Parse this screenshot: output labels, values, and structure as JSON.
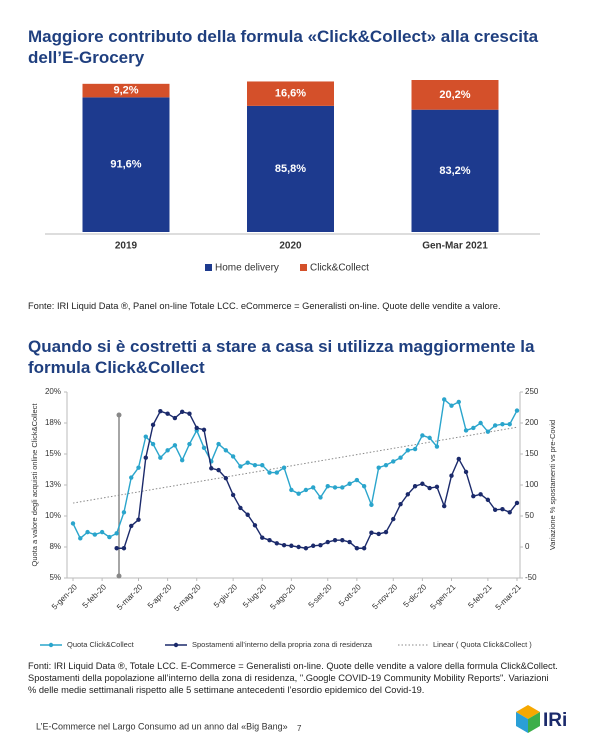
{
  "chart_data": [
    {
      "type": "bar",
      "stacked": true,
      "title": "Maggiore contributo della formula «Click&Collect» alla crescita dell’E-Grocery",
      "categories": [
        "2019",
        "2020",
        "Gen-Mar 2021"
      ],
      "series": [
        {
          "name": "Home delivery",
          "color": "#1d3a8e",
          "values": [
            91.6,
            85.8,
            83.2
          ],
          "value_labels": [
            "91,6%",
            "85,8%",
            "83,2%"
          ]
        },
        {
          "name": "Click&Collect",
          "color": "#d4502a",
          "values": [
            9.2,
            16.6,
            20.2
          ],
          "value_labels": [
            "9,2%",
            "16,6%",
            "20,2%"
          ]
        }
      ],
      "source": "Fonte: IRI Liquid Data ®, Panel on-line Totale LCC. eCommerce = Generalisti on-line. Quote delle vendite a valore."
    },
    {
      "type": "line",
      "title": "Quando si è costretti a stare a casa si utilizza maggiormente la formula Click&Collect",
      "ylabel": "Quota a valore degli acquisti online Click&Collect",
      "y2label": "Variazione % spostamenti vs pre-Covid",
      "categories": [
        "5-gen-20",
        null,
        null,
        null,
        "5-feb-20",
        null,
        null,
        null,
        null,
        "5-mar-20",
        null,
        null,
        null,
        "5-apr-20",
        null,
        null,
        null,
        "5-mag-20",
        null,
        null,
        null,
        null,
        "5-giu-20",
        null,
        null,
        null,
        "5-lug-20",
        null,
        null,
        null,
        "5-ago-20",
        null,
        null,
        null,
        null,
        "5-set-20",
        null,
        null,
        null,
        "5-ott-20",
        null,
        null,
        null,
        null,
        "5-nov-20",
        null,
        null,
        null,
        "5-dic-20",
        null,
        null,
        null,
        "5-gen-21",
        null,
        null,
        null,
        null,
        "5-feb-21",
        null,
        null,
        null,
        "5-mar-21"
      ],
      "ylim": [
        5,
        20
      ],
      "yticks": [
        {
          "value": 5,
          "label": "5%"
        },
        {
          "value": 7.5,
          "label": "8%"
        },
        {
          "value": 10,
          "label": "10%"
        },
        {
          "value": 12.5,
          "label": "13%"
        },
        {
          "value": 15,
          "label": "15%"
        },
        {
          "value": 17.5,
          "label": "18%"
        },
        {
          "value": 20,
          "label": "20%"
        }
      ],
      "y2lim": [
        -50,
        250
      ],
      "y2ticks": [
        -50,
        0,
        50,
        100,
        150,
        200,
        250
      ],
      "series": [
        {
          "name": "Quota Click&Collect",
          "color": "#2aa5cc",
          "values": [
            9.4,
            8.2,
            8.7,
            8.5,
            8.7,
            8.3,
            8.6,
            10.3,
            13.1,
            13.9,
            16.4,
            15.8,
            14.7,
            15.3,
            15.7,
            14.5,
            15.8,
            16.9,
            15.5,
            14.4,
            15.8,
            15.3,
            14.8,
            14.0,
            14.3,
            14.1,
            14.1,
            13.5,
            13.5,
            13.9,
            12.1,
            11.8,
            12.1,
            12.3,
            11.5,
            12.4,
            12.3,
            12.3,
            12.6,
            12.9,
            12.4,
            10.9,
            13.9,
            14.1,
            14.4,
            14.7,
            15.3,
            15.4,
            16.5,
            16.3,
            15.6,
            19.4,
            18.9,
            19.2,
            16.9,
            17.1,
            17.5,
            16.8,
            17.3,
            17.4,
            17.4,
            18.5
          ]
        },
        {
          "name": "Spostamenti all’interno della propria zona di residenza",
          "color": "#1b2a6b",
          "axis": "y2",
          "values": [
            null,
            null,
            null,
            null,
            null,
            null,
            -2,
            -2,
            34,
            44,
            144,
            197,
            219,
            215,
            208,
            218,
            215,
            192,
            189,
            127,
            124,
            111,
            84,
            63,
            52,
            35,
            15,
            11,
            6,
            3,
            2,
            0,
            -2,
            2,
            3,
            8,
            11,
            11,
            8,
            -2,
            -2,
            23,
            21,
            24,
            45,
            69,
            85,
            98,
            102,
            95,
            97,
            66,
            115,
            142,
            121,
            82,
            85,
            76,
            60,
            61,
            56,
            71
          ]
        }
      ],
      "trendline": {
        "name": "Linear ( Quota Click&Collect )",
        "color": "#8a8a8a"
      },
      "source": "Fonti: IRI Liquid Data ®, Totale LCC. E-Commerce = Generalisti on-line. Quote delle vendite a valore della formula Click&Collect. Spostamenti della popolazione all’interno della zona di residenza, \".Google COVID-19 Community Mobility Reports\". Variazioni % delle medie settimanali rispetto alle 5 settimane antecedenti l’esordio epidemico del Covid-19."
    }
  ],
  "footer": {
    "text": "L’E-Commerce nel Largo Consumo ad un anno dal «Big Bang»",
    "page": "7",
    "logo": "IRi"
  }
}
